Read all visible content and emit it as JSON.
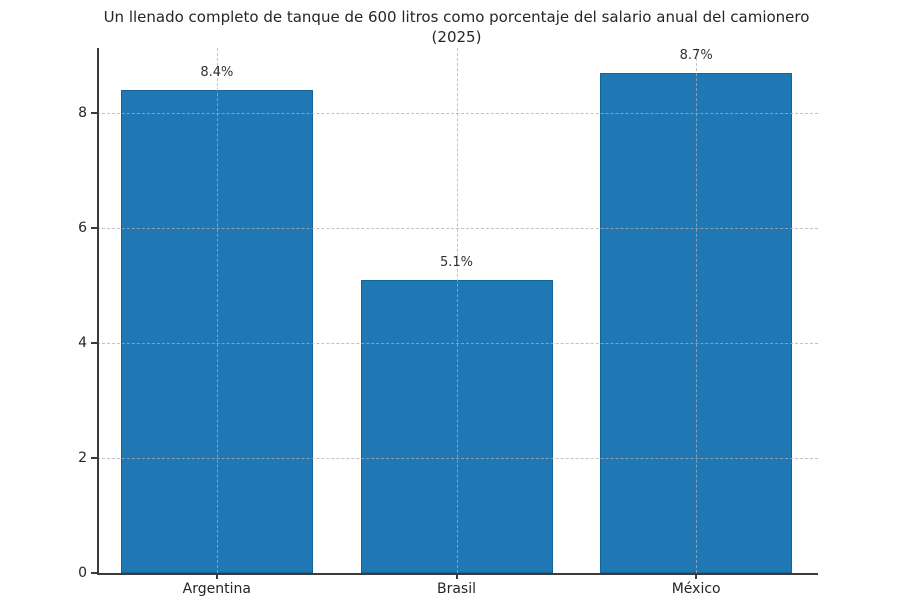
{
  "chart_data": {
    "type": "bar",
    "title": "Un llenado completo de tanque de 600 litros como porcentaje del salario anual del camionero (2025)",
    "categories": [
      "Argentina",
      "Brasil",
      "México"
    ],
    "values": [
      8.4,
      5.1,
      8.7
    ],
    "bar_labels": [
      "8.4%",
      "5.1%",
      "8.7%"
    ],
    "xlabel": "",
    "ylabel": "",
    "yticks": [
      0,
      2,
      4,
      6,
      8
    ],
    "ylim": [
      0,
      9.135
    ],
    "grid": "dashed, horizontal and vertical at category centers",
    "legend": "none",
    "bar_color": "#1f77b4",
    "bar_edge_color": "#105482",
    "grid_color": "#afafaf",
    "spine_color": "#3b3b3b",
    "text_color": "#262626"
  }
}
